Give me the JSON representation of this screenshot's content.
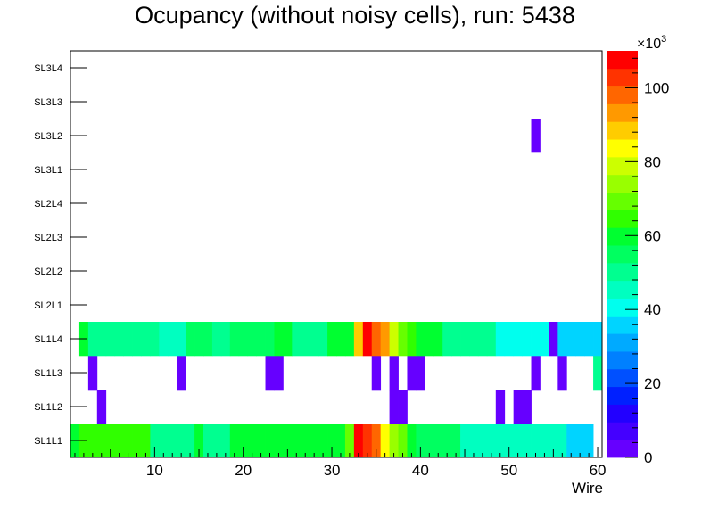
{
  "chart_data": {
    "type": "heatmap",
    "title": "Ocupancy (without noisy cells), run: 5438",
    "xlabel": "Wire",
    "ylabel": "",
    "xlim": [
      0.5,
      60.5
    ],
    "x_ticks": [
      "10",
      "20",
      "30",
      "40",
      "50",
      "60"
    ],
    "y_categories": [
      "SL1L1",
      "SL1L2",
      "SL1L3",
      "SL1L4",
      "SL2L1",
      "SL2L2",
      "SL2L3",
      "SL2L4",
      "SL3L1",
      "SL3L2",
      "SL3L3",
      "SL3L4"
    ],
    "colorbar": {
      "min": 0,
      "max": 110000,
      "exponent_label": "×10",
      "exponent_power": "3",
      "ticks": [
        "0",
        "20",
        "40",
        "60",
        "80",
        "100"
      ],
      "palette": [
        "#6600ff",
        "#4400ff",
        "#2200ff",
        "#0020ff",
        "#0050ff",
        "#0080ff",
        "#00aaff",
        "#00d4ff",
        "#00ffee",
        "#00ffc0",
        "#00ff90",
        "#00ff60",
        "#00ff30",
        "#30ff00",
        "#66ff00",
        "#99ff00",
        "#ccff00",
        "#ffff00",
        "#ffcc00",
        "#ff9900",
        "#ff6600",
        "#ff3300",
        "#ff0000"
      ]
    },
    "rows": {
      "SL1L1": [
        [
          1,
          58000
        ],
        [
          2,
          64000
        ],
        [
          3,
          64000
        ],
        [
          4,
          64000
        ],
        [
          5,
          64000
        ],
        [
          6,
          64000
        ],
        [
          7,
          64000
        ],
        [
          8,
          64000
        ],
        [
          9,
          64000
        ],
        [
          10,
          52000
        ],
        [
          11,
          52000
        ],
        [
          12,
          52000
        ],
        [
          13,
          52000
        ],
        [
          14,
          52000
        ],
        [
          15,
          58000
        ],
        [
          16,
          52000
        ],
        [
          17,
          52000
        ],
        [
          18,
          52000
        ],
        [
          19,
          62000
        ],
        [
          20,
          62000
        ],
        [
          21,
          62000
        ],
        [
          22,
          62000
        ],
        [
          23,
          62000
        ],
        [
          24,
          62000
        ],
        [
          25,
          62000
        ],
        [
          26,
          62000
        ],
        [
          27,
          62000
        ],
        [
          28,
          62000
        ],
        [
          29,
          62000
        ],
        [
          30,
          62000
        ],
        [
          31,
          62000
        ],
        [
          32,
          68000
        ],
        [
          33,
          110000
        ],
        [
          34,
          104000
        ],
        [
          35,
          96000
        ],
        [
          36,
          84000
        ],
        [
          37,
          76000
        ],
        [
          38,
          68000
        ],
        [
          39,
          62000
        ],
        [
          40,
          56000
        ],
        [
          41,
          56000
        ],
        [
          42,
          56000
        ],
        [
          43,
          56000
        ],
        [
          44,
          56000
        ],
        [
          45,
          44000
        ],
        [
          46,
          44000
        ],
        [
          47,
          44000
        ],
        [
          48,
          44000
        ],
        [
          49,
          44000
        ],
        [
          50,
          44000
        ],
        [
          51,
          44000
        ],
        [
          52,
          44000
        ],
        [
          53,
          44000
        ],
        [
          54,
          44000
        ],
        [
          55,
          44000
        ],
        [
          56,
          44000
        ],
        [
          57,
          36000
        ],
        [
          58,
          36000
        ],
        [
          59,
          36000
        ]
      ],
      "SL1L2": [
        [
          4,
          1000
        ],
        [
          37,
          1000
        ],
        [
          38,
          1000
        ],
        [
          49,
          1000
        ],
        [
          51,
          1000
        ],
        [
          52,
          1000
        ]
      ],
      "SL1L3": [
        [
          3,
          1000
        ],
        [
          13,
          1000
        ],
        [
          23,
          1000
        ],
        [
          24,
          1000
        ],
        [
          35,
          1000
        ],
        [
          37,
          1000
        ],
        [
          39,
          1000
        ],
        [
          40,
          1000
        ],
        [
          53,
          1000
        ],
        [
          56,
          1000
        ],
        [
          60,
          52000
        ]
      ],
      "SL1L4": [
        [
          2,
          62000
        ],
        [
          3,
          52000
        ],
        [
          4,
          52000
        ],
        [
          5,
          52000
        ],
        [
          6,
          52000
        ],
        [
          7,
          52000
        ],
        [
          8,
          52000
        ],
        [
          9,
          52000
        ],
        [
          10,
          52000
        ],
        [
          11,
          44000
        ],
        [
          12,
          44000
        ],
        [
          13,
          44000
        ],
        [
          14,
          56000
        ],
        [
          15,
          56000
        ],
        [
          16,
          56000
        ],
        [
          17,
          48000
        ],
        [
          18,
          48000
        ],
        [
          19,
          56000
        ],
        [
          20,
          56000
        ],
        [
          21,
          56000
        ],
        [
          22,
          56000
        ],
        [
          23,
          56000
        ],
        [
          24,
          62000
        ],
        [
          25,
          62000
        ],
        [
          26,
          52000
        ],
        [
          27,
          52000
        ],
        [
          28,
          52000
        ],
        [
          29,
          52000
        ],
        [
          30,
          58000
        ],
        [
          31,
          58000
        ],
        [
          32,
          58000
        ],
        [
          33,
          88000
        ],
        [
          34,
          110000
        ],
        [
          35,
          100000
        ],
        [
          36,
          92000
        ],
        [
          37,
          80000
        ],
        [
          38,
          70000
        ],
        [
          39,
          64000
        ],
        [
          40,
          58000
        ],
        [
          41,
          58000
        ],
        [
          42,
          58000
        ],
        [
          43,
          48000
        ],
        [
          44,
          48000
        ],
        [
          45,
          48000
        ],
        [
          46,
          48000
        ],
        [
          47,
          48000
        ],
        [
          48,
          48000
        ],
        [
          49,
          40000
        ],
        [
          50,
          40000
        ],
        [
          51,
          40000
        ],
        [
          52,
          40000
        ],
        [
          53,
          40000
        ],
        [
          54,
          40000
        ],
        [
          55,
          1000
        ],
        [
          56,
          36000
        ],
        [
          57,
          36000
        ],
        [
          58,
          36000
        ],
        [
          59,
          36000
        ],
        [
          60,
          36000
        ]
      ],
      "SL3L2": [
        [
          53,
          1000
        ]
      ]
    }
  }
}
